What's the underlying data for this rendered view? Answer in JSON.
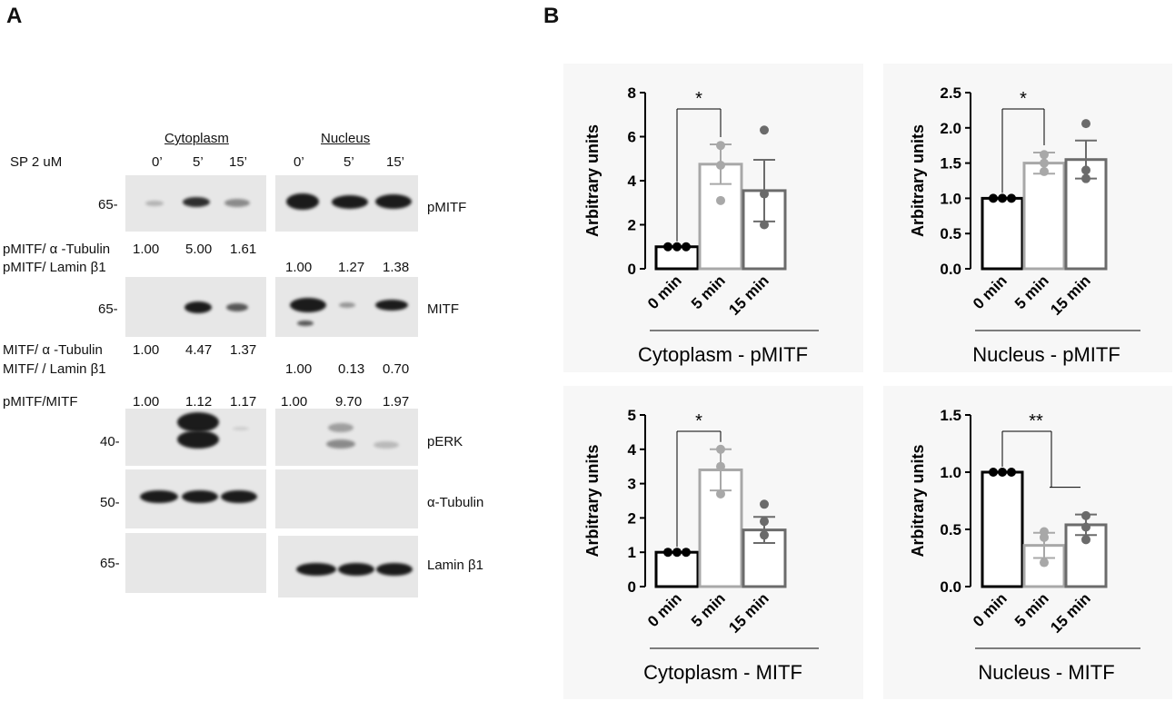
{
  "panels": {
    "a": "A",
    "b": "B"
  },
  "western_blot": {
    "headers": {
      "cytoplasm": "Cytoplasm",
      "nucleus": "Nucleus"
    },
    "treatment_label": "SP 2 uM",
    "timepoints": [
      "0’",
      "5’",
      "15’",
      "0’",
      "5’",
      "15’"
    ],
    "blots": [
      {
        "marker": "65-",
        "label": "pMITF"
      },
      {
        "marker": "65-",
        "label": "MITF"
      },
      {
        "marker": "40-",
        "label": "pERK"
      },
      {
        "marker": "50-",
        "label": "α-Tubulin"
      },
      {
        "marker": "65-",
        "label": "Lamin β1"
      }
    ],
    "quant_rows": [
      {
        "label": "pMITF/ α -Tubulin",
        "values": [
          "1.00",
          "5.00",
          "1.61"
        ]
      },
      {
        "label": "pMITF/  Lamin β1",
        "values": [
          "1.00",
          "1.27",
          "1.38"
        ]
      },
      {
        "label": "MITF/ α -Tubulin",
        "values": [
          "1.00",
          "4.47",
          "1.37"
        ]
      },
      {
        "label": "MITF/ /  Lamin β1",
        "values": [
          "1.00",
          "0.13",
          "0.70"
        ]
      },
      {
        "label": "pMITF/MITF",
        "values": [
          "1.00",
          "1.12",
          "1.17",
          "1.00",
          "9.70",
          "1.97"
        ]
      }
    ]
  },
  "chart_data": [
    {
      "type": "bar",
      "title": "Cytoplasm - pMITF",
      "ylabel": "Arbitrary units",
      "categories": [
        "0 min",
        "5 min",
        "15 min"
      ],
      "values": [
        1.0,
        4.75,
        3.55
      ],
      "sem": [
        0.0,
        0.9,
        1.4
      ],
      "points": [
        [
          1.0,
          1.0,
          1.0
        ],
        [
          5.6,
          4.7,
          3.1
        ],
        [
          6.3,
          3.4,
          2.0
        ]
      ],
      "ylim": [
        0,
        8
      ],
      "yticks": [
        "0",
        "2",
        "4",
        "6",
        "8"
      ],
      "significance": [
        {
          "label": "*",
          "from": 0,
          "to": 1
        }
      ],
      "colors": [
        "#000000",
        "#a8a8a8",
        "#6b6b6b"
      ]
    },
    {
      "type": "bar",
      "title": "Nucleus - pMITF",
      "ylabel": "Arbitrary units",
      "categories": [
        "0 min",
        "5 min",
        "15 min"
      ],
      "values": [
        1.0,
        1.5,
        1.55
      ],
      "sem": [
        0.0,
        0.15,
        0.27
      ],
      "points": [
        [
          1.0,
          1.0,
          1.0
        ],
        [
          1.62,
          1.5,
          1.38
        ],
        [
          2.06,
          1.4,
          1.28
        ]
      ],
      "ylim": [
        0,
        2.5
      ],
      "yticks": [
        "0.0",
        "0.5",
        "1.0",
        "1.5",
        "2.0",
        "2.5"
      ],
      "significance": [
        {
          "label": "*",
          "from": 0,
          "to": 1
        }
      ],
      "colors": [
        "#000000",
        "#a8a8a8",
        "#6b6b6b"
      ]
    },
    {
      "type": "bar",
      "title": "Cytoplasm - MITF",
      "ylabel": "Arbitrary units",
      "categories": [
        "0 min",
        "5 min",
        "15 min"
      ],
      "values": [
        1.0,
        3.4,
        1.65
      ],
      "sem": [
        0.0,
        0.6,
        0.38
      ],
      "points": [
        [
          1.0,
          1.0,
          1.0
        ],
        [
          4.0,
          3.5,
          2.7
        ],
        [
          2.4,
          1.9,
          1.5
        ]
      ],
      "ylim": [
        0,
        5
      ],
      "yticks": [
        "0",
        "1",
        "2",
        "3",
        "4",
        "5"
      ],
      "significance": [
        {
          "label": "*",
          "from": 0,
          "to": 1
        }
      ],
      "colors": [
        "#000000",
        "#a8a8a8",
        "#6b6b6b"
      ]
    },
    {
      "type": "bar",
      "title": "Nucleus - MITF",
      "ylabel": "Arbitrary units",
      "categories": [
        "0 min",
        "5 min",
        "15 min"
      ],
      "values": [
        1.0,
        0.36,
        0.54
      ],
      "sem": [
        0.0,
        0.11,
        0.09
      ],
      "points": [
        [
          1.0,
          1.0,
          1.0
        ],
        [
          0.48,
          0.43,
          0.21
        ],
        [
          0.62,
          0.52,
          0.41
        ]
      ],
      "ylim": [
        0,
        1.5
      ],
      "yticks": [
        "0.0",
        "0.5",
        "1.0",
        "1.5"
      ],
      "significance": [
        {
          "label": "**",
          "from": 0,
          "to": [
            1,
            2
          ]
        }
      ],
      "colors": [
        "#000000",
        "#a8a8a8",
        "#6b6b6b"
      ]
    }
  ]
}
